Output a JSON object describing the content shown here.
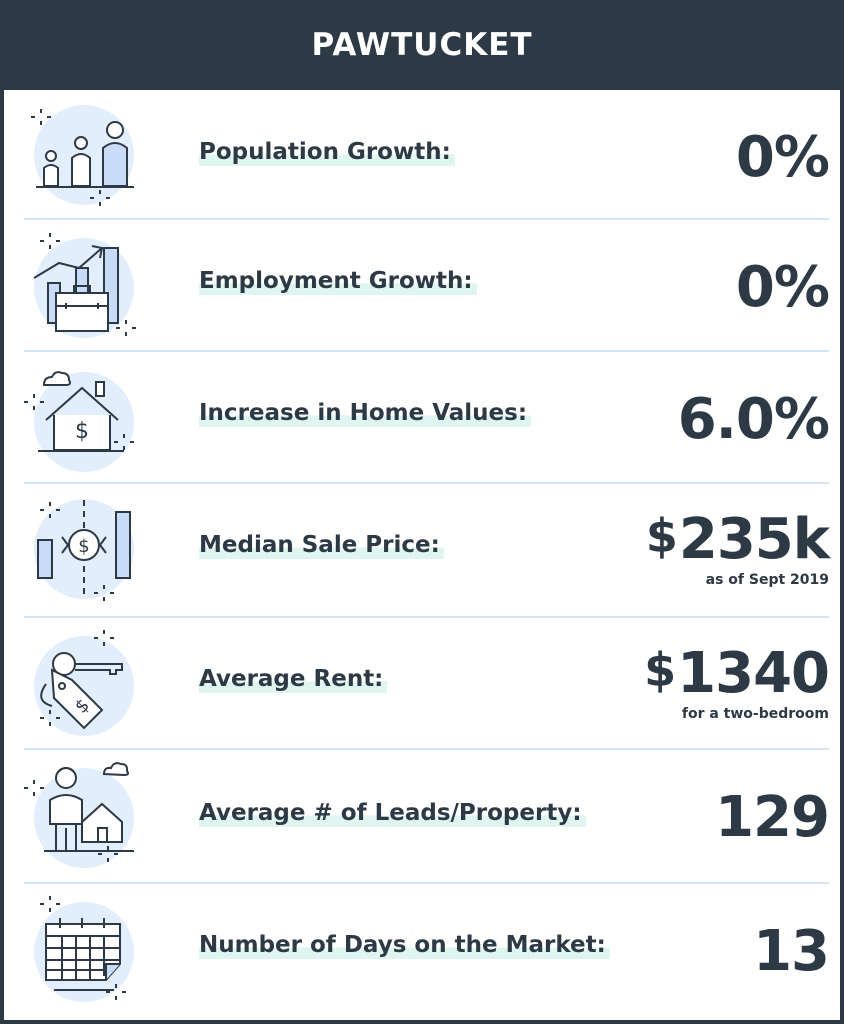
{
  "header": {
    "title": "PAWTUCKET"
  },
  "stats": [
    {
      "label": "Population Growth:",
      "value": "0%",
      "icon": "population-icon"
    },
    {
      "label": "Employment Growth:",
      "value": "0%",
      "icon": "employment-icon"
    },
    {
      "label": "Increase in Home Values:",
      "value": "6.0%",
      "icon": "home-value-icon"
    },
    {
      "label": "Median Sale Price:",
      "currency": "$",
      "value": "235k",
      "note": "as  of Sept 2019",
      "icon": "sale-price-icon"
    },
    {
      "label": "Average Rent:",
      "currency": "$",
      "value": "1340",
      "note": "for a two-bedroom",
      "icon": "rent-key-icon"
    },
    {
      "label": "Average # of Leads/Property:",
      "value": "129",
      "icon": "leads-person-icon"
    },
    {
      "label": "Number of Days on the Market:",
      "value": "13",
      "icon": "calendar-icon"
    }
  ],
  "colors": {
    "dark": "#2d3945",
    "icon_fill": "#e3eefc",
    "icon_bar": "#c9dcf7",
    "highlight": "#dff5ef",
    "divider": "#d3e4f5"
  }
}
